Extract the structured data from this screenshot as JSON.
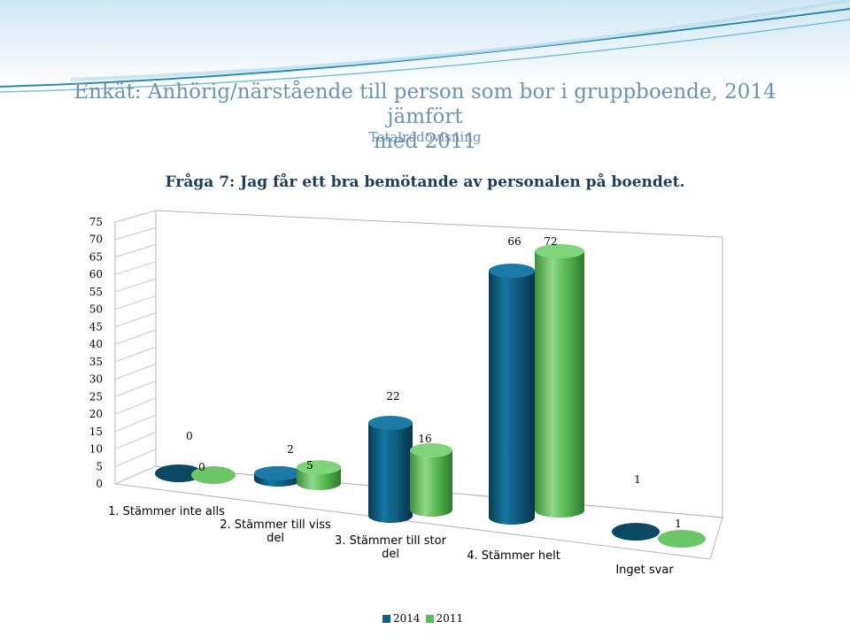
{
  "header": {
    "title_line1": "Enkät: Anhörig/närstående till person som bor i gruppboende, 2014 jämfört",
    "title_line2": "med 2011",
    "subtitle": "Totalredovisning",
    "question": "Fråga 7: Jag får ett bra bemötande av personalen på boendet."
  },
  "chart_data": {
    "type": "bar",
    "ylim": [
      0,
      75
    ],
    "y_ticks": [
      "0",
      "5",
      "10",
      "15",
      "20",
      "25",
      "30",
      "35",
      "40",
      "45",
      "50",
      "55",
      "60",
      "65",
      "70",
      "75"
    ],
    "categories": [
      [
        "1. Stämmer inte alls"
      ],
      [
        "2. Stämmer till viss",
        "del"
      ],
      [
        "3. Stämmer till stor",
        "del"
      ],
      [
        "4. Stämmer helt"
      ],
      [
        "Inget svar"
      ]
    ],
    "series": [
      {
        "name": "2014",
        "color": "#0e5f82",
        "values": [
          0,
          2,
          22,
          66,
          1
        ]
      },
      {
        "name": "2011",
        "color": "#5bbd57",
        "values": [
          0,
          5,
          16,
          72,
          1
        ]
      }
    ],
    "legend_position": "bottom",
    "grid": false
  }
}
